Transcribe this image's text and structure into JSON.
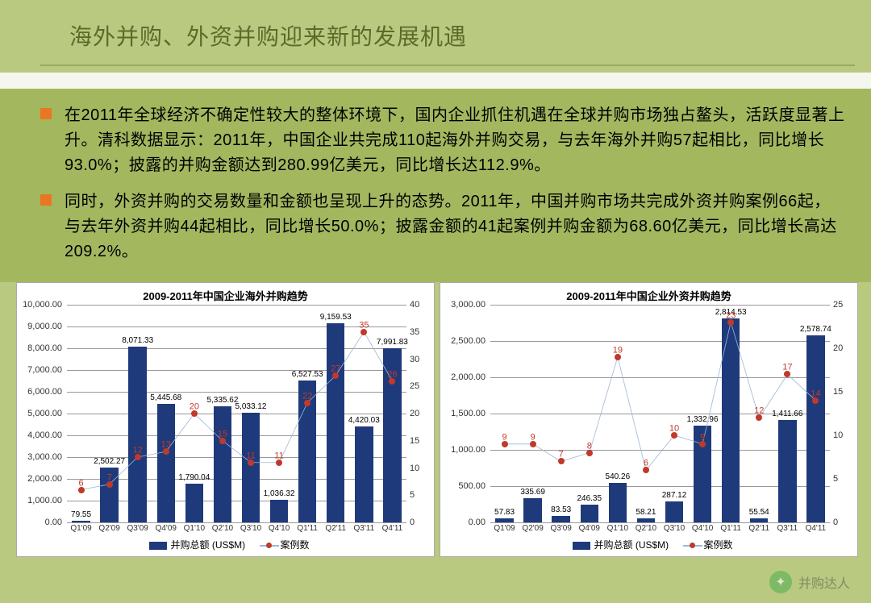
{
  "title": "海外并购、外资并购迎来新的发展机遇",
  "bullets": [
    "在2011年全球经济不确定性较大的整体环境下，国内企业抓住机遇在全球并购市场独占鳌头，活跃度显著上升。清科数据显示：2011年，中国企业共完成110起海外并购交易，与去年海外并购57起相比，同比增长93.0%；披露的并购金额达到280.99亿美元，同比增长达112.9%。",
    "同时，外资并购的交易数量和金额也呈现上升的态势。2011年，中国并购市场共完成外资并购案例66起，与去年外资并购44起相比，同比增长50.0%；披露金额的41起案例并购金额为68.60亿美元，同比增长高达209.2%。"
  ],
  "watermark": "并购达人",
  "chart_left": {
    "type": "bar+line",
    "title": "2009-2011年中国企业海外并购趋势",
    "categories": [
      "Q1'09",
      "Q2'09",
      "Q3'09",
      "Q4'09",
      "Q1'10",
      "Q2'10",
      "Q3'10",
      "Q4'10",
      "Q1'11",
      "Q2'11",
      "Q3'11",
      "Q4'11"
    ],
    "bar_values": [
      79.55,
      2502.27,
      8071.33,
      5445.68,
      1790.04,
      5335.62,
      5033.12,
      1036.32,
      6527.53,
      9159.53,
      4420.03,
      7991.83
    ],
    "bar_labels": [
      "79.55",
      "2,502.27",
      "8,071.33",
      "5,445.68",
      "1,790.04",
      "5,335.62",
      "5,033.12",
      "1,036.32",
      "6,527.53",
      "9,159.53",
      "4,420.03",
      "7,991.83"
    ],
    "line_values": [
      6,
      7,
      12,
      13,
      20,
      15,
      11,
      11,
      22,
      27,
      35,
      26
    ],
    "bar_color": "#1f3a7a",
    "line_color": "#9db7d6",
    "marker_color": "#c0392b",
    "left_axis": {
      "max": 10000,
      "step": 1000,
      "fmt": "comma"
    },
    "right_axis": {
      "max": 40,
      "step": 5
    },
    "legend_bar": "并购总额 (US$M)",
    "legend_line": "案例数",
    "background_color": "#ffffff",
    "grid_color": "#999999"
  },
  "chart_right": {
    "type": "bar+line",
    "title": "2009-2011年中国企业外资并购趋势",
    "categories": [
      "Q1'09",
      "Q2'09",
      "Q3'09",
      "Q4'09",
      "Q1'10",
      "Q2'10",
      "Q3'10",
      "Q4'10",
      "Q1'11",
      "Q2'11",
      "Q3'11",
      "Q4'11"
    ],
    "bar_values": [
      57.83,
      335.69,
      83.53,
      246.35,
      540.26,
      58.21,
      287.12,
      1332.96,
      2814.53,
      55.54,
      1411.66,
      2578.74
    ],
    "bar_labels": [
      "57.83",
      "335.69",
      "83.53",
      "246.35",
      "540.26",
      "58.21",
      "287.12",
      "1,332.96",
      "2,814.53",
      "55.54",
      "1,411.66",
      "2,578.74"
    ],
    "line_values": [
      9,
      9,
      7,
      8,
      19,
      6,
      10,
      9,
      23,
      12,
      17,
      14
    ],
    "bar_color": "#1f3a7a",
    "line_color": "#9db7d6",
    "marker_color": "#c0392b",
    "left_axis": {
      "max": 3000,
      "step": 500,
      "fmt": "comma"
    },
    "right_axis": {
      "max": 25,
      "step": 5
    },
    "legend_bar": "并购总额 (US$M)",
    "legend_line": "案例数",
    "background_color": "#ffffff",
    "grid_color": "#999999"
  }
}
